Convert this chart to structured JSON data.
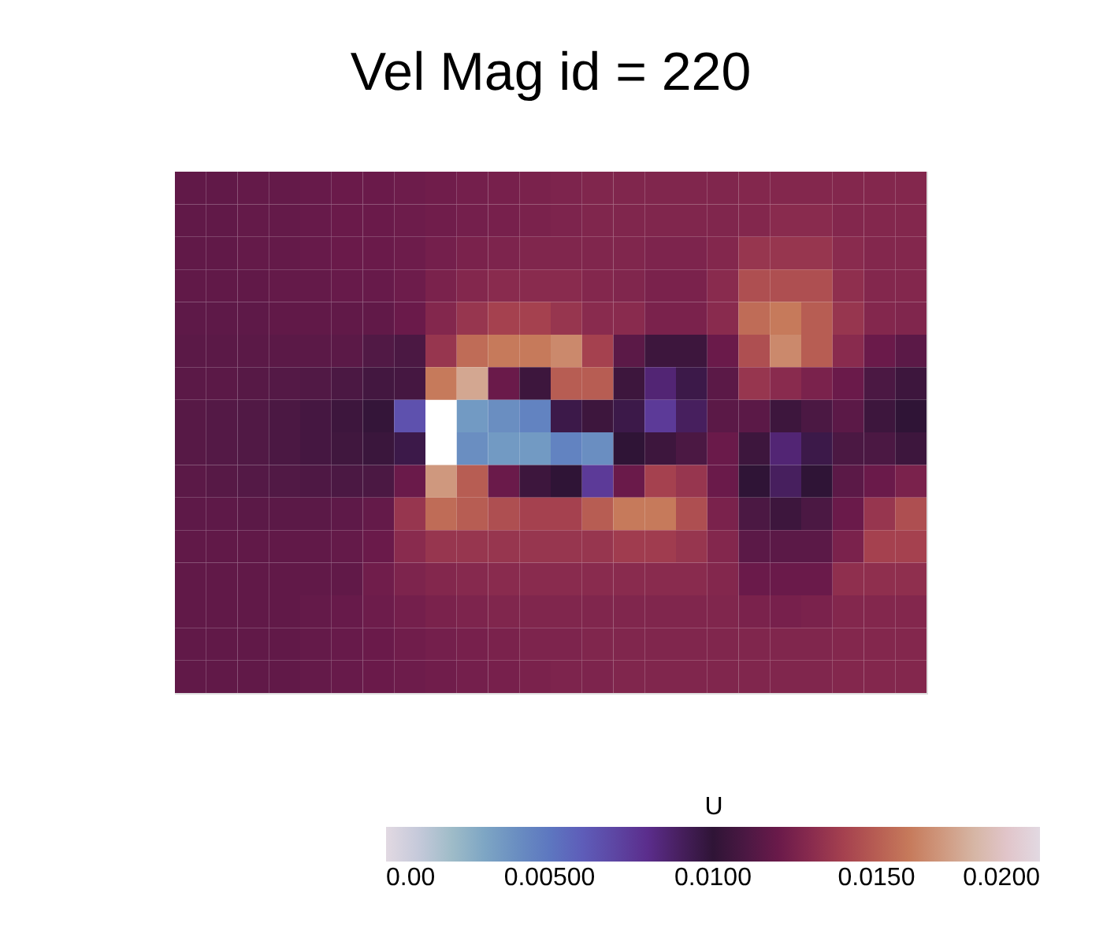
{
  "chart_data": {
    "type": "heatmap",
    "title": "Vel Mag id = 220",
    "clabel": "U",
    "categories": [
      null,
      null,
      null,
      null,
      null,
      null,
      null,
      null,
      null,
      null,
      null,
      null,
      null,
      null,
      null,
      null,
      null,
      null,
      null,
      null,
      null,
      null,
      null,
      null
    ],
    "y_categories": [
      null,
      null,
      null,
      null,
      null,
      null,
      null,
      null,
      null,
      null,
      null,
      null,
      null,
      null,
      null,
      null
    ],
    "cells": [
      [
        0.0117,
        0.0117,
        0.0118,
        0.0118,
        0.0119,
        0.012,
        0.012,
        0.0121,
        0.0122,
        0.0123,
        0.0124,
        0.0125,
        0.0126,
        0.0127,
        0.0127,
        0.0127,
        0.0127,
        0.0127,
        0.0128,
        0.0128,
        0.0128,
        0.0128,
        0.0128,
        0.0128
      ],
      [
        0.0117,
        0.0117,
        0.0118,
        0.0118,
        0.0119,
        0.012,
        0.012,
        0.0121,
        0.0122,
        0.0123,
        0.0124,
        0.0125,
        0.0126,
        0.0127,
        0.0127,
        0.0127,
        0.0127,
        0.0127,
        0.0128,
        0.013,
        0.013,
        0.0128,
        0.0128,
        0.0128
      ],
      [
        0.0117,
        0.0117,
        0.0118,
        0.0118,
        0.0119,
        0.012,
        0.012,
        0.0121,
        0.0123,
        0.0125,
        0.0126,
        0.0127,
        0.0127,
        0.0127,
        0.0127,
        0.0126,
        0.0126,
        0.0128,
        0.0135,
        0.0135,
        0.0135,
        0.013,
        0.0128,
        0.0128
      ],
      [
        0.0117,
        0.0117,
        0.0117,
        0.0118,
        0.0118,
        0.0119,
        0.0119,
        0.0121,
        0.0125,
        0.0128,
        0.013,
        0.013,
        0.013,
        0.0128,
        0.0127,
        0.0125,
        0.0125,
        0.013,
        0.0145,
        0.0145,
        0.0145,
        0.0132,
        0.0128,
        0.0128
      ],
      [
        0.0116,
        0.0116,
        0.0116,
        0.0117,
        0.0117,
        0.0117,
        0.0117,
        0.012,
        0.0128,
        0.0135,
        0.014,
        0.014,
        0.0135,
        0.013,
        0.013,
        0.0125,
        0.0125,
        0.013,
        0.0155,
        0.016,
        0.015,
        0.0135,
        0.0128,
        0.0127
      ],
      [
        0.0115,
        0.0115,
        0.0115,
        0.0115,
        0.0115,
        0.0115,
        0.0112,
        0.011,
        0.0135,
        0.0155,
        0.016,
        0.016,
        0.0165,
        0.014,
        0.0115,
        0.0105,
        0.0105,
        0.012,
        0.0145,
        0.0165,
        0.015,
        0.013,
        0.012,
        0.0115
      ],
      [
        0.0115,
        0.0115,
        0.0114,
        0.0113,
        0.0112,
        0.011,
        0.0107,
        0.0108,
        0.016,
        0.0175,
        0.012,
        0.0105,
        0.015,
        0.015,
        0.0105,
        0.0085,
        0.0095,
        0.0115,
        0.0135,
        0.013,
        0.0125,
        0.012,
        0.011,
        0.0105
      ],
      [
        0.0114,
        0.0113,
        0.0112,
        0.011,
        0.0108,
        0.0105,
        0.0102,
        0.0065,
        null,
        0.0035,
        0.004,
        0.0045,
        0.0095,
        0.0105,
        0.0095,
        0.0075,
        0.009,
        0.0115,
        0.0115,
        0.0105,
        0.011,
        0.0115,
        0.0105,
        0.01
      ],
      [
        0.0114,
        0.0113,
        0.0112,
        0.011,
        0.0108,
        0.0106,
        0.0104,
        0.0095,
        null,
        0.004,
        0.0035,
        0.0035,
        0.0045,
        0.004,
        0.01,
        0.0105,
        0.011,
        0.012,
        0.0105,
        0.0085,
        0.0095,
        0.011,
        0.011,
        0.0105
      ],
      [
        0.0115,
        0.0114,
        0.0113,
        0.0112,
        0.0111,
        0.011,
        0.011,
        0.012,
        0.017,
        0.015,
        0.012,
        0.0105,
        0.01,
        0.0075,
        0.012,
        0.014,
        0.0135,
        0.012,
        0.01,
        0.009,
        0.01,
        0.0115,
        0.012,
        0.0125
      ],
      [
        0.0116,
        0.0116,
        0.0115,
        0.0115,
        0.0115,
        0.0116,
        0.0118,
        0.0135,
        0.0155,
        0.015,
        0.0145,
        0.014,
        0.014,
        0.015,
        0.016,
        0.016,
        0.0145,
        0.0125,
        0.011,
        0.0105,
        0.011,
        0.012,
        0.0135,
        0.0145
      ],
      [
        0.0117,
        0.0117,
        0.0117,
        0.0117,
        0.0117,
        0.0118,
        0.012,
        0.013,
        0.0135,
        0.0135,
        0.0135,
        0.0135,
        0.0135,
        0.0135,
        0.0138,
        0.0138,
        0.0135,
        0.0128,
        0.0115,
        0.0115,
        0.0115,
        0.0125,
        0.014,
        0.014
      ],
      [
        0.0117,
        0.0117,
        0.0117,
        0.0117,
        0.0117,
        0.0117,
        0.0122,
        0.0126,
        0.0128,
        0.0129,
        0.013,
        0.013,
        0.013,
        0.013,
        0.013,
        0.013,
        0.013,
        0.0128,
        0.012,
        0.012,
        0.012,
        0.0132,
        0.0132,
        0.0132
      ],
      [
        0.0117,
        0.0117,
        0.0117,
        0.0117,
        0.0118,
        0.0119,
        0.0121,
        0.0123,
        0.0125,
        0.0126,
        0.0127,
        0.0127,
        0.0127,
        0.0127,
        0.0127,
        0.0127,
        0.0127,
        0.0127,
        0.0125,
        0.0124,
        0.0125,
        0.0128,
        0.0128,
        0.0128
      ],
      [
        0.0117,
        0.0117,
        0.0117,
        0.0117,
        0.0118,
        0.0119,
        0.012,
        0.0122,
        0.0123,
        0.0124,
        0.0125,
        0.0126,
        0.0126,
        0.0127,
        0.0127,
        0.0127,
        0.0127,
        0.0127,
        0.0127,
        0.0127,
        0.0127,
        0.0128,
        0.0128,
        0.0128
      ],
      [
        0.0117,
        0.0117,
        0.0117,
        0.0117,
        0.0118,
        0.0119,
        0.012,
        0.0121,
        0.0122,
        0.0123,
        0.0124,
        0.0125,
        0.0126,
        0.0126,
        0.0127,
        0.0127,
        0.0127,
        0.0127,
        0.0127,
        0.0127,
        0.0127,
        0.0128,
        0.0128,
        0.0128
      ]
    ],
    "clim": [
      0.0,
      0.02
    ],
    "cticks": [
      {
        "value": 0.0,
        "label": "0.00"
      },
      {
        "value": 0.005,
        "label": "0.00500"
      },
      {
        "value": 0.01,
        "label": "0.0100"
      },
      {
        "value": 0.015,
        "label": "0.0150"
      },
      {
        "value": 0.02,
        "label": "0.0200"
      }
    ],
    "tick_labels": false
  }
}
